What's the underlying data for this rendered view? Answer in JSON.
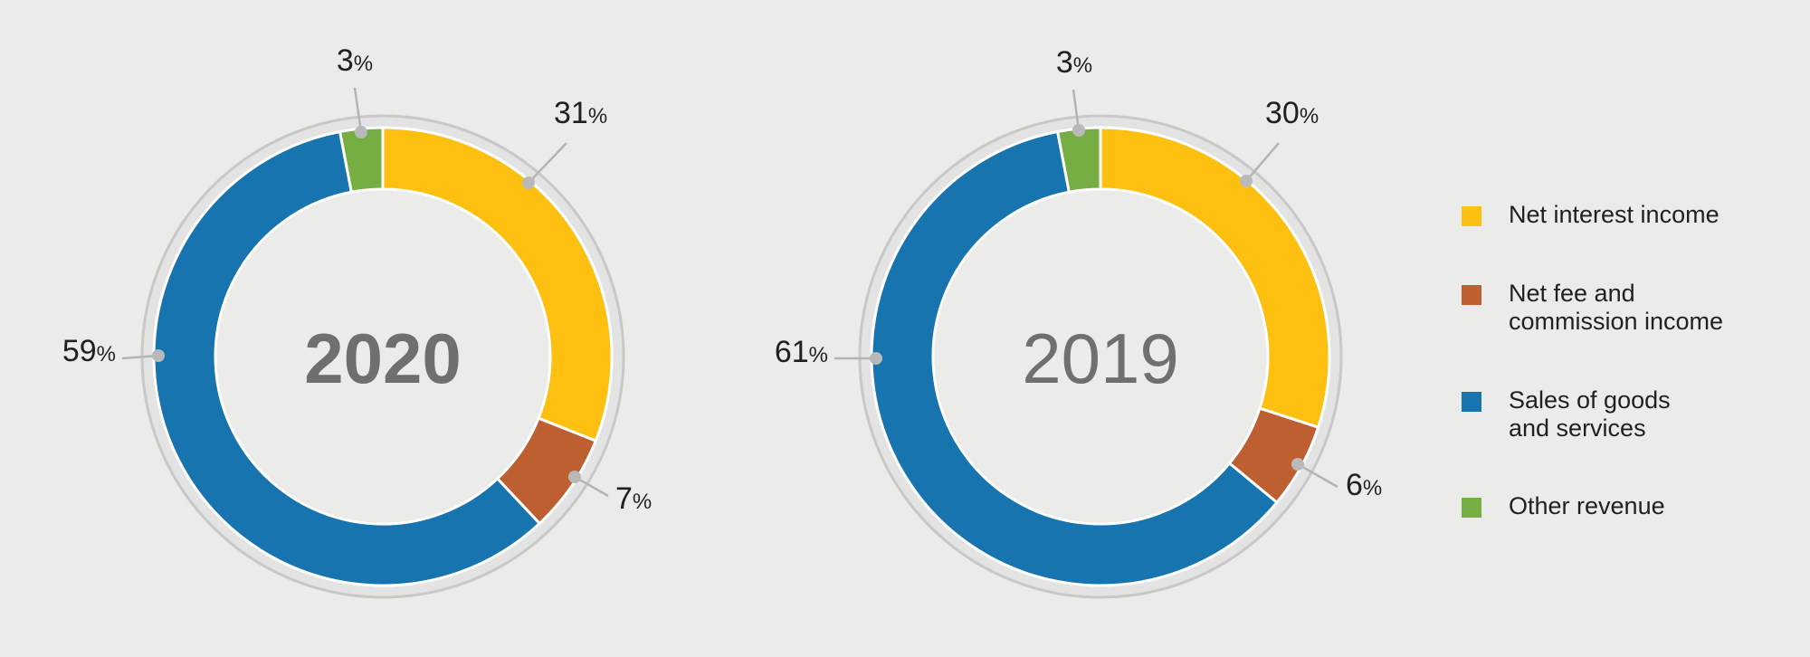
{
  "chart_data": {
    "type": "pie",
    "variant": "donut",
    "series_order": [
      "Net interest income",
      "Net fee and commission income",
      "Sales of goods and services",
      "Other revenue"
    ],
    "colors": [
      "#fdbf10",
      "#bd5f30",
      "#1874ae",
      "#76ae44"
    ],
    "charts": [
      {
        "center_label": "2020",
        "center_bold": true,
        "values": [
          31,
          7,
          59,
          3
        ],
        "labels": [
          "31",
          "7",
          "59",
          "3"
        ],
        "unit": "%"
      },
      {
        "center_label": "2019",
        "center_bold": false,
        "values": [
          30,
          6,
          61,
          3
        ],
        "labels": [
          "30",
          "6",
          "61",
          "3"
        ],
        "unit": "%"
      }
    ],
    "legend": {
      "position": "right",
      "items": [
        {
          "line1": "Net interest income",
          "line2": "",
          "color": "#fdbf10"
        },
        {
          "line1": "Net fee and",
          "line2": "commission income",
          "color": "#bd5f30"
        },
        {
          "line1": "Sales of goods",
          "line2": "and services",
          "color": "#1874ae"
        },
        {
          "line1": "Other revenue",
          "line2": "",
          "color": "#76ae44"
        }
      ]
    }
  }
}
